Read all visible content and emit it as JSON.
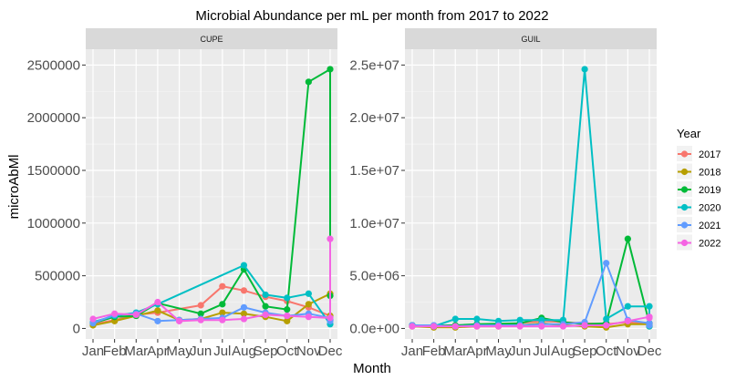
{
  "chart_data": {
    "type": "line",
    "title": "Microbial Abundance per mL per month from 2017 to 2022",
    "xlabel": "Month",
    "ylabel": "microAbMl",
    "months": [
      "Jan",
      "Feb",
      "Mar",
      "Apr",
      "May",
      "Jun",
      "Jul",
      "Aug",
      "Sep",
      "Oct",
      "Nov",
      "Dec"
    ],
    "month_tick_labels": [
      "Jan",
      "Feb",
      "Mar",
      "Apr",
      "May",
      "Jun",
      "Jul",
      "Aug",
      "Sep",
      "Oct",
      "Nov",
      "Dec"
    ],
    "legend": {
      "title": "Year",
      "position": "right"
    },
    "colors": {
      "2017": "#F8766D",
      "2018": "#B79F00",
      "2019": "#00BA38",
      "2020": "#00BFC4",
      "2021": "#619CFF",
      "2022": "#F564E3"
    },
    "grid": true,
    "panels": [
      {
        "strip": "CUPE",
        "ylim": [
          -100000,
          2650000
        ],
        "yticks": [
          0,
          500000,
          1000000,
          1500000,
          2000000,
          2500000
        ],
        "ytick_labels": [
          "0",
          "500000",
          "1000000",
          "1500000",
          "2000000",
          "2500000"
        ],
        "series": [
          {
            "name": "2017",
            "points": [
              [
                "Jan",
                40000
              ],
              [
                "Feb",
                80000
              ],
              [
                "Mar",
                130000
              ],
              [
                "Apr",
                150000
              ],
              [
                "Jun",
                220000
              ],
              [
                "Jul",
                400000
              ],
              [
                "Aug",
                360000
              ],
              [
                "Sep",
                300000
              ],
              [
                "Oct",
                260000
              ],
              [
                "Nov",
                200000
              ],
              [
                "Dec",
                120000
              ]
            ]
          },
          {
            "name": "2018",
            "points": [
              [
                "Jan",
                30000
              ],
              [
                "Feb",
                70000
              ],
              [
                "Mar",
                120000
              ],
              [
                "Apr",
                170000
              ],
              [
                "May",
                80000
              ],
              [
                "Jun",
                90000
              ],
              [
                "Jul",
                150000
              ],
              [
                "Aug",
                140000
              ],
              [
                "Sep",
                110000
              ],
              [
                "Oct",
                70000
              ],
              [
                "Nov",
                230000
              ],
              [
                "Dec",
                330000
              ],
              [
                "Dec",
                120000
              ]
            ]
          },
          {
            "name": "2019",
            "points": [
              [
                "Jan",
                50000
              ],
              [
                "Feb",
                110000
              ],
              [
                "Mar",
                120000
              ],
              [
                "Apr",
                240000
              ],
              [
                "Jun",
                140000
              ],
              [
                "Jul",
                230000
              ],
              [
                "Aug",
                560000
              ],
              [
                "Sep",
                210000
              ],
              [
                "Oct",
                180000
              ],
              [
                "Nov",
                2340000
              ],
              [
                "Dec",
                2460000
              ],
              [
                "Dec",
                310000
              ]
            ]
          },
          {
            "name": "2020",
            "points": [
              [
                "Jan",
                60000
              ],
              [
                "Feb",
                120000
              ],
              [
                "Mar",
                150000
              ],
              [
                "Apr",
                230000
              ],
              [
                "Aug",
                600000
              ],
              [
                "Sep",
                320000
              ],
              [
                "Oct",
                290000
              ],
              [
                "Nov",
                330000
              ],
              [
                "Dec",
                40000
              ],
              [
                "Dec",
                80000
              ]
            ]
          },
          {
            "name": "2021",
            "points": [
              [
                "Jan",
                50000
              ],
              [
                "Feb",
                130000
              ],
              [
                "Mar",
                140000
              ],
              [
                "Apr",
                70000
              ],
              [
                "May",
                80000
              ],
              [
                "Jun",
                90000
              ],
              [
                "Jul",
                100000
              ],
              [
                "Aug",
                200000
              ],
              [
                "Sep",
                150000
              ],
              [
                "Oct",
                120000
              ],
              [
                "Nov",
                140000
              ],
              [
                "Dec",
                100000
              ],
              [
                "Dec",
                70000
              ]
            ]
          },
          {
            "name": "2022",
            "points": [
              [
                "Jan",
                90000
              ],
              [
                "Feb",
                140000
              ],
              [
                "Mar",
                130000
              ],
              [
                "Apr",
                250000
              ],
              [
                "May",
                70000
              ],
              [
                "Jun",
                80000
              ],
              [
                "Jul",
                80000
              ],
              [
                "Aug",
                90000
              ],
              [
                "Sep",
                130000
              ],
              [
                "Oct",
                120000
              ],
              [
                "Nov",
                110000
              ],
              [
                "Dec",
                100000
              ],
              [
                "Dec",
                850000
              ]
            ]
          }
        ]
      },
      {
        "strip": "GUIL",
        "ylim": [
          -1000000,
          26500000
        ],
        "yticks": [
          0,
          5000000,
          10000000,
          15000000,
          20000000,
          25000000
        ],
        "ytick_labels": [
          "0.0e+00",
          "5.0e+06",
          "1.0e+07",
          "1.5e+07",
          "2.0e+07",
          "2.5e+07"
        ],
        "series": [
          {
            "name": "2017",
            "points": [
              [
                "Jan",
                300000
              ],
              [
                "Feb",
                200000
              ],
              [
                "Apr",
                300000
              ],
              [
                "May",
                300000
              ],
              [
                "Jul",
                700000
              ],
              [
                "Aug",
                600000
              ],
              [
                "Sep",
                500000
              ],
              [
                "Oct",
                400000
              ],
              [
                "Nov",
                600000
              ],
              [
                "Dec",
                400000
              ],
              [
                "Dec",
                300000
              ]
            ]
          },
          {
            "name": "2018",
            "points": [
              [
                "Jan",
                200000
              ],
              [
                "Feb",
                100000
              ],
              [
                "Mar",
                100000
              ],
              [
                "Apr",
                200000
              ],
              [
                "May",
                200000
              ],
              [
                "Jun",
                300000
              ],
              [
                "Jul",
                500000
              ],
              [
                "Aug",
                300000
              ],
              [
                "Sep",
                200000
              ],
              [
                "Oct",
                100000
              ],
              [
                "Nov",
                400000
              ],
              [
                "Dec",
                400000
              ],
              [
                "Dec",
                200000
              ]
            ]
          },
          {
            "name": "2019",
            "points": [
              [
                "Jan",
                300000
              ],
              [
                "Mar",
                300000
              ],
              [
                "Apr",
                400000
              ],
              [
                "Jun",
                500000
              ],
              [
                "Jul",
                1000000
              ],
              [
                "Aug",
                600000
              ],
              [
                "Sep",
                400000
              ],
              [
                "Oct",
                500000
              ],
              [
                "Nov",
                8500000
              ],
              [
                "Dec",
                500000
              ],
              [
                "Dec",
                300000
              ]
            ]
          },
          {
            "name": "2020",
            "points": [
              [
                "Jan",
                300000
              ],
              [
                "Feb",
                200000
              ],
              [
                "Mar",
                900000
              ],
              [
                "Apr",
                900000
              ],
              [
                "May",
                700000
              ],
              [
                "Jun",
                800000
              ],
              [
                "Jul",
                800000
              ],
              [
                "Aug",
                800000
              ],
              [
                "Sep",
                24600000
              ],
              [
                "Oct",
                900000
              ],
              [
                "Nov",
                2100000
              ],
              [
                "Dec",
                2100000
              ],
              [
                "Dec",
                200000
              ]
            ]
          },
          {
            "name": "2021",
            "points": [
              [
                "Jan",
                300000
              ],
              [
                "Feb",
                300000
              ],
              [
                "Mar",
                200000
              ],
              [
                "Apr",
                300000
              ],
              [
                "May",
                300000
              ],
              [
                "Jun",
                300000
              ],
              [
                "Jul",
                400000
              ],
              [
                "Aug",
                400000
              ],
              [
                "Sep",
                600000
              ],
              [
                "Oct",
                6200000
              ],
              [
                "Nov",
                800000
              ],
              [
                "Dec",
                500000
              ],
              [
                "Dec",
                300000
              ]
            ]
          },
          {
            "name": "2022",
            "points": [
              [
                "Jan",
                200000
              ],
              [
                "Feb",
                200000
              ],
              [
                "Mar",
                200000
              ],
              [
                "Apr",
                200000
              ],
              [
                "May",
                200000
              ],
              [
                "Jun",
                200000
              ],
              [
                "Jul",
                200000
              ],
              [
                "Aug",
                200000
              ],
              [
                "Sep",
                300000
              ],
              [
                "Oct",
                300000
              ],
              [
                "Nov",
                700000
              ],
              [
                "Dec",
                1100000
              ],
              [
                "Dec",
                1000000
              ]
            ]
          }
        ]
      }
    ]
  }
}
